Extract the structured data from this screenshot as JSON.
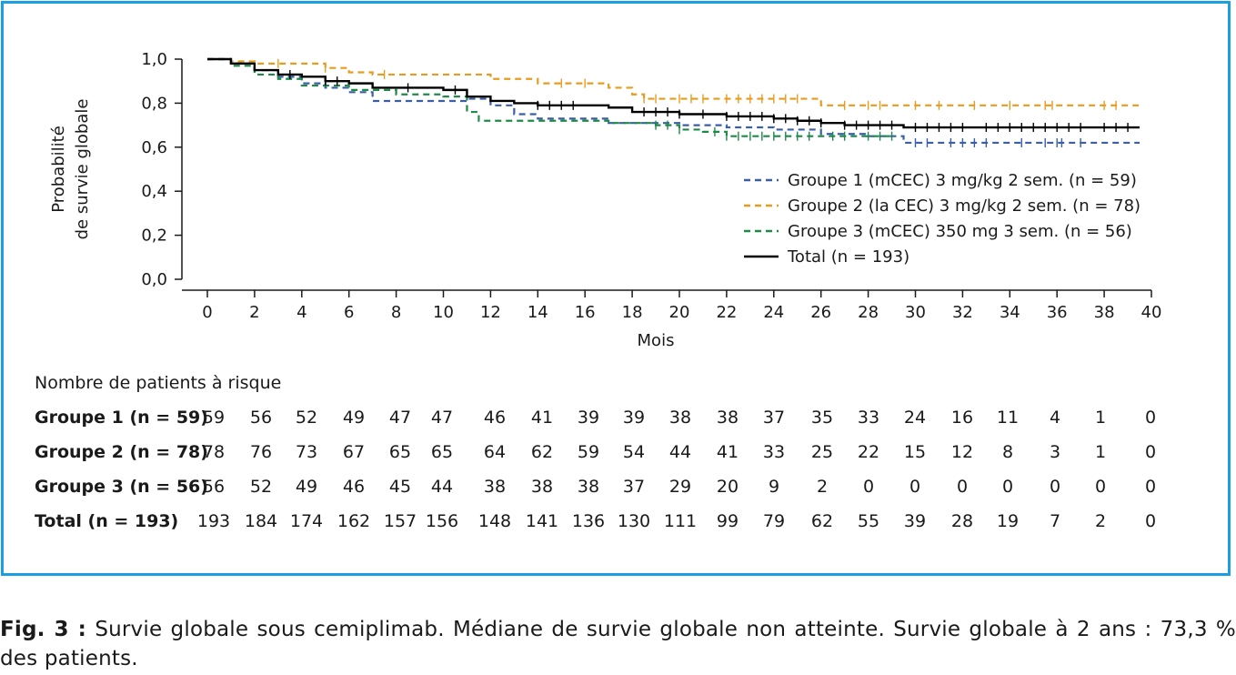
{
  "chart_data": {
    "type": "line",
    "subtype": "kaplan-meier",
    "ylabel_line1": "Probabilité",
    "ylabel_line2": "de survie globale",
    "xlabel": "Mois",
    "xlim": [
      0,
      40
    ],
    "ylim": [
      0,
      1
    ],
    "x_ticks": [
      "0",
      "2",
      "4",
      "6",
      "8",
      "10",
      "12",
      "14",
      "16",
      "18",
      "20",
      "22",
      "24",
      "26",
      "28",
      "30",
      "32",
      "34",
      "36",
      "38",
      "40"
    ],
    "y_ticks": [
      "0,0",
      "0,2",
      "0,4",
      "0,6",
      "0,8",
      "1,0"
    ],
    "y_tick_values": [
      0,
      0.2,
      0.4,
      0.6,
      0.8,
      1.0
    ],
    "legend_position": "center-right",
    "series": [
      {
        "name": "Groupe 1 (mCEC) 3 mg/kg 2 sem. (n = 59)",
        "color": "#3a5fa8",
        "dash": "dashed",
        "x": [
          0,
          1,
          2,
          3,
          4,
          5,
          6,
          7,
          10,
          11,
          12,
          13,
          14,
          17,
          20,
          22,
          24,
          26,
          28,
          29.5,
          39.5
        ],
        "y": [
          1.0,
          0.98,
          0.95,
          0.92,
          0.89,
          0.87,
          0.85,
          0.81,
          0.81,
          0.82,
          0.79,
          0.75,
          0.73,
          0.71,
          0.7,
          0.69,
          0.68,
          0.66,
          0.65,
          0.62,
          0.62
        ],
        "censor_x": [
          30,
          30.5,
          31.5,
          32,
          32.5,
          33,
          34.5,
          35.5,
          36,
          36.2,
          37
        ]
      },
      {
        "name": "Groupe 2 (la CEC) 3 mg/kg 2 sem. (n = 78)",
        "color": "#e89b1c",
        "dash": "dashed",
        "x": [
          0,
          1,
          2,
          4,
          5,
          6,
          7,
          10,
          12,
          14,
          17,
          18,
          18.5,
          20,
          25,
          26,
          39.5
        ],
        "y": [
          1.0,
          0.99,
          0.98,
          0.98,
          0.96,
          0.94,
          0.93,
          0.93,
          0.91,
          0.89,
          0.87,
          0.84,
          0.82,
          0.82,
          0.82,
          0.79,
          0.79
        ],
        "censor_x": [
          3,
          5,
          7.5,
          15,
          16,
          18.5,
          19,
          20,
          20.5,
          21,
          22,
          22.5,
          23,
          23.5,
          24,
          24.5,
          25,
          27,
          28,
          28.5,
          30,
          31,
          32.5,
          34,
          35.5,
          35.8,
          38,
          38.5
        ]
      },
      {
        "name": "Groupe 3 (mCEC) 350 mg 3 sem. (n = 56)",
        "color": "#1e8a48",
        "dash": "dashed",
        "x": [
          0,
          1,
          2,
          3,
          4,
          6,
          8,
          10,
          11,
          11.5,
          14,
          17,
          19,
          20,
          21,
          22,
          23,
          26,
          29
        ],
        "y": [
          1.0,
          0.97,
          0.93,
          0.91,
          0.88,
          0.86,
          0.84,
          0.83,
          0.76,
          0.72,
          0.72,
          0.71,
          0.7,
          0.68,
          0.67,
          0.65,
          0.65,
          0.65,
          0.65
        ],
        "censor_x": [
          19,
          19.5,
          20,
          21.5,
          22,
          22.5,
          23,
          23.5,
          24,
          24.5,
          25,
          25.5,
          26.5,
          27,
          28,
          28.5,
          29
        ]
      },
      {
        "name": "Total (n = 193)",
        "color": "#000000",
        "dash": "solid",
        "x": [
          0,
          1,
          2,
          3,
          4,
          5,
          6,
          7,
          8,
          10,
          11,
          12,
          13,
          14,
          16,
          17,
          18,
          19,
          20,
          22,
          24,
          25,
          26,
          27,
          28,
          29.5,
          39.5
        ],
        "y": [
          1.0,
          0.98,
          0.95,
          0.93,
          0.92,
          0.9,
          0.89,
          0.87,
          0.87,
          0.86,
          0.83,
          0.81,
          0.8,
          0.79,
          0.79,
          0.78,
          0.76,
          0.76,
          0.75,
          0.74,
          0.73,
          0.72,
          0.71,
          0.7,
          0.7,
          0.69,
          0.69
        ],
        "censor_x": [
          3.5,
          5,
          5.5,
          8.5,
          10.5,
          14,
          14.5,
          15,
          15.5,
          18.5,
          19,
          19.5,
          20,
          21,
          22,
          22.5,
          23,
          23.5,
          24,
          24.5,
          25,
          25.5,
          26,
          27,
          27.5,
          28,
          28.5,
          29,
          30,
          30.5,
          31,
          31.5,
          32,
          33,
          33.5,
          34,
          34.5,
          35,
          35.5,
          36,
          36.5,
          37,
          38,
          38.5,
          39
        ]
      }
    ]
  },
  "risk_table": {
    "title": "Nombre de patients à risque",
    "rows": [
      {
        "label": "Groupe 1 (n = 59)",
        "color": "#3a5fa8",
        "bold": true,
        "values": [
          "59",
          "56",
          "52",
          "49",
          "47",
          "47",
          "46",
          "41",
          "39",
          "39",
          "38",
          "38",
          "37",
          "35",
          "33",
          "24",
          "16",
          "11",
          "4",
          "1",
          "0"
        ]
      },
      {
        "label": "Groupe 2 (n = 78)",
        "color": "#e89b1c",
        "bold": true,
        "values": [
          "78",
          "76",
          "73",
          "67",
          "65",
          "65",
          "64",
          "62",
          "59",
          "54",
          "44",
          "41",
          "33",
          "25",
          "22",
          "15",
          "12",
          "8",
          "3",
          "1",
          "0"
        ]
      },
      {
        "label": "Groupe 3 (n = 56)",
        "color": "#1e8a48",
        "bold": true,
        "values": [
          "56",
          "52",
          "49",
          "46",
          "45",
          "44",
          "38",
          "38",
          "38",
          "37",
          "29",
          "20",
          "9",
          "2",
          "0",
          "0",
          "0",
          "0",
          "0",
          "0",
          "0"
        ]
      },
      {
        "label": "Total (n = 193)",
        "color": "#000000",
        "bold": true,
        "values": [
          "193",
          "184",
          "174",
          "162",
          "157",
          "156",
          "148",
          "141",
          "136",
          "130",
          "111",
          "99",
          "79",
          "62",
          "55",
          "39",
          "28",
          "19",
          "7",
          "2",
          "0"
        ]
      }
    ]
  },
  "caption": {
    "label": "Fig. 3 :",
    "text": "Survie globale sous cemiplimab. Médiane de survie globale non atteinte. Survie globale à 2 ans : 73,3 % des patients."
  }
}
